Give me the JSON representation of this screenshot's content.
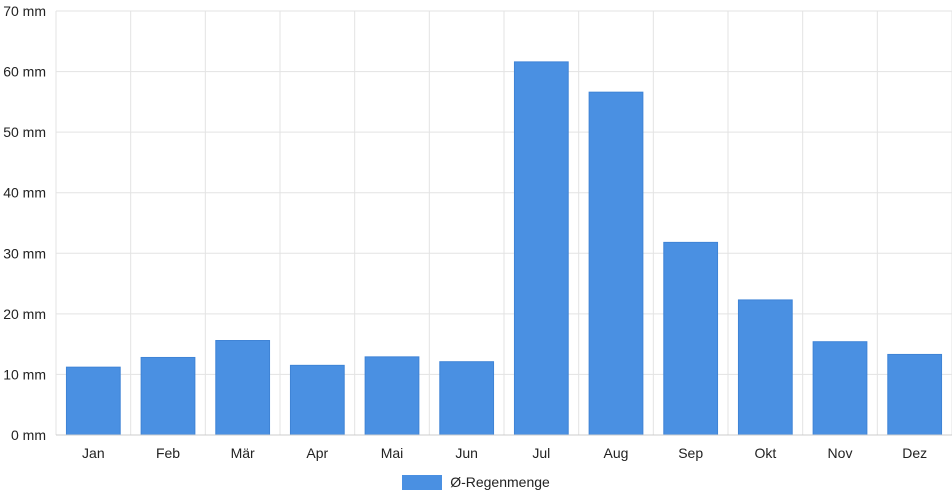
{
  "chart_data": {
    "type": "bar",
    "categories": [
      "Jan",
      "Feb",
      "Mär",
      "Apr",
      "Mai",
      "Jun",
      "Jul",
      "Aug",
      "Sep",
      "Okt",
      "Nov",
      "Dez"
    ],
    "series": [
      {
        "name": "Ø-Regenmenge",
        "values": [
          11.2,
          12.8,
          15.6,
          11.5,
          12.9,
          12.1,
          61.6,
          56.6,
          31.8,
          22.3,
          15.4,
          13.3
        ]
      }
    ],
    "ylim": [
      0,
      70
    ],
    "yticks": [
      0,
      10,
      20,
      30,
      40,
      50,
      60,
      70
    ],
    "ytick_labels": [
      "0 mm",
      "10 mm",
      "20 mm",
      "30 mm",
      "40 mm",
      "50 mm",
      "60 mm",
      "70 mm"
    ],
    "grid": true,
    "legend_position": "bottom",
    "bar_color": "#4a90e2"
  },
  "legend": {
    "label": "Ø-Regenmenge"
  }
}
